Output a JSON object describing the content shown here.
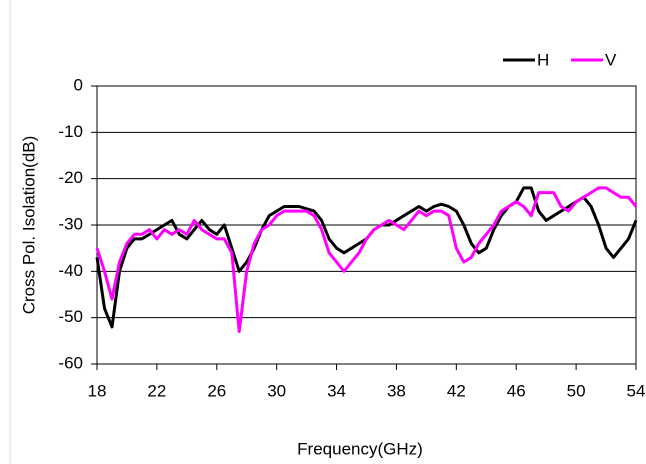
{
  "chart_data": {
    "type": "line",
    "xlabel": "Frequency(GHz)",
    "ylabel": "Cross Pol. Isolation(dB)",
    "x": [
      18,
      18.5,
      19,
      19.5,
      20,
      20.5,
      21,
      21.5,
      22,
      22.5,
      23,
      23.5,
      24,
      24.5,
      25,
      25.5,
      26,
      26.5,
      27,
      27.5,
      28,
      28.5,
      29,
      29.5,
      30,
      30.5,
      31,
      31.5,
      32,
      32.5,
      33,
      33.5,
      34,
      34.5,
      35,
      35.5,
      36,
      36.5,
      37,
      37.5,
      38,
      38.5,
      39,
      39.5,
      40,
      40.5,
      41,
      41.5,
      42,
      42.5,
      43,
      43.5,
      44,
      44.5,
      45,
      45.5,
      46,
      46.5,
      47,
      47.5,
      48,
      48.5,
      49,
      49.5,
      50,
      50.5,
      51,
      51.5,
      52,
      52.5,
      53,
      53.5,
      54
    ],
    "series": [
      {
        "name": "H",
        "color": "#000000",
        "values": [
          -37,
          -48,
          -52,
          -40,
          -35,
          -33,
          -33,
          -32,
          -31,
          -30,
          -29,
          -32,
          -33,
          -31,
          -29,
          -31,
          -32,
          -30,
          -35,
          -40,
          -38,
          -35,
          -31,
          -28,
          -27,
          -26,
          -26,
          -26,
          -26.5,
          -27,
          -29,
          -33,
          -35,
          -36,
          -35,
          -34,
          -33,
          -31,
          -30,
          -30,
          -29,
          -28,
          -27,
          -26,
          -27,
          -26,
          -25.5,
          -26,
          -27,
          -30,
          -34,
          -36,
          -35,
          -31,
          -28,
          -26,
          -25,
          -22,
          -22,
          -27,
          -29,
          -28,
          -27,
          -26,
          -25,
          -24,
          -26,
          -30,
          -35,
          -37,
          -35,
          -33,
          -29
        ]
      },
      {
        "name": "V",
        "color": "#ff00ff",
        "values": [
          -35,
          -40,
          -46,
          -38,
          -34,
          -32,
          -32,
          -31,
          -33,
          -31,
          -32,
          -31,
          -32,
          -29,
          -31,
          -32,
          -33,
          -33,
          -36,
          -53,
          -40,
          -34,
          -31,
          -30,
          -28,
          -27,
          -27,
          -27,
          -27,
          -28,
          -31,
          -36,
          -38,
          -40,
          -38,
          -36,
          -33,
          -31,
          -30,
          -29,
          -30,
          -31,
          -29,
          -27,
          -28,
          -27,
          -27,
          -28,
          -35,
          -38,
          -37,
          -34,
          -32,
          -30,
          -27,
          -26,
          -25,
          -26,
          -28,
          -23,
          -23,
          -23,
          -26,
          -27,
          -25,
          -24,
          -23,
          -22,
          -22,
          -23,
          -24,
          -24,
          -26
        ]
      }
    ],
    "xlim": [
      18,
      54
    ],
    "xticks": [
      18,
      22,
      26,
      30,
      34,
      38,
      42,
      46,
      50,
      54
    ],
    "ylim": [
      -60,
      0
    ],
    "yticks": [
      0,
      -10,
      -20,
      -30,
      -40,
      -50,
      -60
    ],
    "grid": true,
    "legend": "top-right"
  }
}
